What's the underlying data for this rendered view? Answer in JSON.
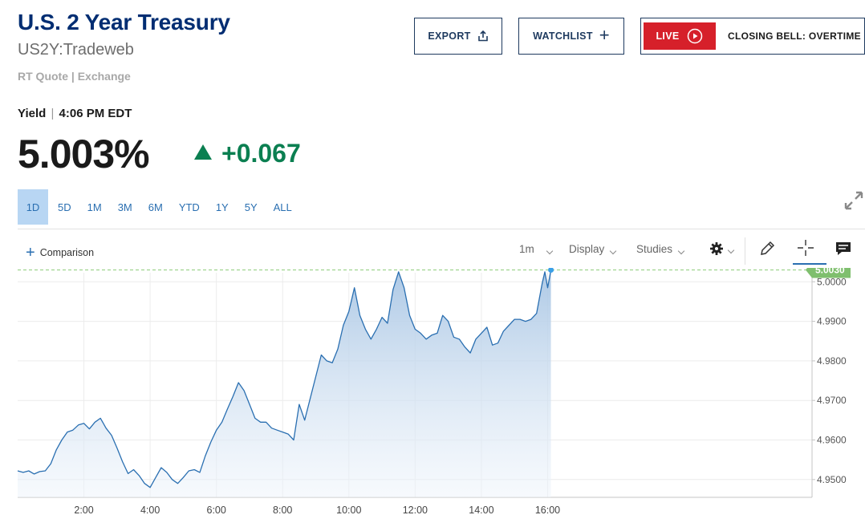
{
  "header": {
    "title": "U.S. 2 Year Treasury",
    "symbol": "US2Y:Tradeweb",
    "quote_source": "RT Quote | Exchange"
  },
  "actions": {
    "export_label": "EXPORT",
    "watchlist_label": "WATCHLIST",
    "live_label": "LIVE",
    "live_show": "CLOSING BELL: OVERTIME"
  },
  "quote": {
    "label": "Yield",
    "separator": "|",
    "time": "4:06 PM EDT",
    "price": "5.003%",
    "change": "+0.067",
    "direction": "up"
  },
  "ranges": {
    "selected": "1D",
    "items": [
      "1D",
      "5D",
      "1M",
      "3M",
      "6M",
      "YTD",
      "1Y",
      "5Y",
      "ALL"
    ]
  },
  "toolbar": {
    "comparison_label": "Comparison",
    "interval": "1m",
    "display_label": "Display",
    "studies_label": "Studies",
    "icons": [
      "gear-icon",
      "pencil-icon",
      "crosshair-icon",
      "comment-icon"
    ]
  },
  "colors": {
    "title": "#002d72",
    "up": "#0b7f51",
    "live_red": "#d6202a",
    "line": "#2a6fb1",
    "last_price_tag": "#7fbf6e"
  },
  "chart_data": {
    "type": "area",
    "x_ticks": [
      "2:00",
      "4:00",
      "6:00",
      "8:00",
      "10:00",
      "12:00",
      "14:00",
      "16:00"
    ],
    "y_ticks": [
      "4.9500",
      "4.9600",
      "4.9700",
      "4.9800",
      "4.9900",
      "5.0000"
    ],
    "ylim": [
      4.9455,
      5.0035
    ],
    "xlim": [
      "00:00",
      "23:59"
    ],
    "last_value_label": "5.0030",
    "last_value": 5.003,
    "series": [
      {
        "points": [
          [
            "00:00",
            4.9522
          ],
          [
            "00:10",
            4.9518
          ],
          [
            "00:20",
            4.9522
          ],
          [
            "00:30",
            4.9514
          ],
          [
            "00:40",
            4.952
          ],
          [
            "00:50",
            4.9522
          ],
          [
            "01:00",
            4.954
          ],
          [
            "01:10",
            4.9575
          ],
          [
            "01:20",
            4.96
          ],
          [
            "01:30",
            4.962
          ],
          [
            "01:40",
            4.9625
          ],
          [
            "01:50",
            4.9638
          ],
          [
            "02:00",
            4.9642
          ],
          [
            "02:10",
            4.9628
          ],
          [
            "02:20",
            4.9645
          ],
          [
            "02:30",
            4.9655
          ],
          [
            "02:40",
            4.963
          ],
          [
            "02:50",
            4.9612
          ],
          [
            "03:00",
            4.958
          ],
          [
            "03:10",
            4.9545
          ],
          [
            "03:20",
            4.9515
          ],
          [
            "03:30",
            4.9525
          ],
          [
            "03:40",
            4.951
          ],
          [
            "03:50",
            4.949
          ],
          [
            "04:00",
            4.948
          ],
          [
            "04:10",
            4.9505
          ],
          [
            "04:20",
            4.953
          ],
          [
            "04:30",
            4.9518
          ],
          [
            "04:40",
            4.95
          ],
          [
            "04:50",
            4.949
          ],
          [
            "05:00",
            4.9505
          ],
          [
            "05:10",
            4.9522
          ],
          [
            "05:20",
            4.9525
          ],
          [
            "05:30",
            4.9518
          ],
          [
            "05:40",
            4.956
          ],
          [
            "05:50",
            4.9595
          ],
          [
            "06:00",
            4.9625
          ],
          [
            "06:10",
            4.9645
          ],
          [
            "06:20",
            4.9678
          ],
          [
            "06:30",
            4.971
          ],
          [
            "06:40",
            4.9745
          ],
          [
            "06:50",
            4.9725
          ],
          [
            "07:00",
            4.969
          ],
          [
            "07:10",
            4.9655
          ],
          [
            "07:20",
            4.9645
          ],
          [
            "07:30",
            4.9645
          ],
          [
            "07:40",
            4.963
          ],
          [
            "07:50",
            4.9625
          ],
          [
            "08:00",
            4.962
          ],
          [
            "08:10",
            4.9615
          ],
          [
            "08:20",
            4.96
          ],
          [
            "08:30",
            4.969
          ],
          [
            "08:40",
            4.965
          ],
          [
            "08:50",
            4.9705
          ],
          [
            "09:00",
            4.976
          ],
          [
            "09:10",
            4.9815
          ],
          [
            "09:20",
            4.98
          ],
          [
            "09:30",
            4.9795
          ],
          [
            "09:40",
            4.983
          ],
          [
            "09:50",
            4.989
          ],
          [
            "10:00",
            4.9925
          ],
          [
            "10:10",
            4.9985
          ],
          [
            "10:20",
            4.9915
          ],
          [
            "10:30",
            4.988
          ],
          [
            "10:40",
            4.9855
          ],
          [
            "10:50",
            4.988
          ],
          [
            "11:00",
            4.991
          ],
          [
            "11:10",
            4.9895
          ],
          [
            "11:20",
            4.998
          ],
          [
            "11:30",
            5.0025
          ],
          [
            "11:40",
            4.9985
          ],
          [
            "11:50",
            4.9915
          ],
          [
            "12:00",
            4.988
          ],
          [
            "12:10",
            4.987
          ],
          [
            "12:20",
            4.9855
          ],
          [
            "12:30",
            4.9865
          ],
          [
            "12:40",
            4.987
          ],
          [
            "12:50",
            4.9915
          ],
          [
            "13:00",
            4.99
          ],
          [
            "13:10",
            4.986
          ],
          [
            "13:20",
            4.9855
          ],
          [
            "13:30",
            4.9835
          ],
          [
            "13:40",
            4.982
          ],
          [
            "13:50",
            4.9855
          ],
          [
            "14:00",
            4.987
          ],
          [
            "14:10",
            4.9885
          ],
          [
            "14:20",
            4.984
          ],
          [
            "14:30",
            4.9845
          ],
          [
            "14:40",
            4.9875
          ],
          [
            "14:50",
            4.989
          ],
          [
            "15:00",
            4.9905
          ],
          [
            "15:10",
            4.9905
          ],
          [
            "15:20",
            4.99
          ],
          [
            "15:30",
            4.9905
          ],
          [
            "15:40",
            4.992
          ],
          [
            "15:50",
            4.9995
          ],
          [
            "15:55",
            5.0025
          ],
          [
            "16:00",
            4.9985
          ],
          [
            "16:06",
            5.003
          ]
        ]
      }
    ],
    "grid": true,
    "last_price_line": "dashed"
  }
}
